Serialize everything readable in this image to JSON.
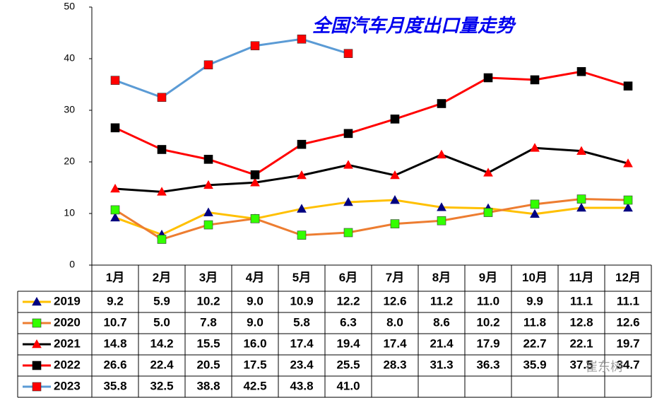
{
  "chart_data": {
    "type": "line",
    "title": "全国汽车月度出口量走势",
    "watermark": "崔东树",
    "categories": [
      "1月",
      "2月",
      "3月",
      "4月",
      "5月",
      "6月",
      "7月",
      "8月",
      "9月",
      "10月",
      "11月",
      "12月"
    ],
    "ylim": [
      0,
      50
    ],
    "yticks": [
      0,
      10,
      20,
      30,
      40,
      50
    ],
    "grid": false,
    "series": [
      {
        "name": "2019",
        "color": "#ffc000",
        "marker": "triangle",
        "marker_color": "#000080",
        "values": [
          9.2,
          5.9,
          10.2,
          9.0,
          10.9,
          12.2,
          12.6,
          11.2,
          11.0,
          9.9,
          11.1,
          11.1
        ],
        "value_labels": [
          "9.2",
          "5.9",
          "10.2",
          "9.0",
          "10.9",
          "12.2",
          "12.6",
          "11.2",
          "11.0",
          "9.9",
          "11.1",
          "11.1"
        ]
      },
      {
        "name": "2020",
        "color": "#ed7d31",
        "marker": "square",
        "marker_color": "#33ff00",
        "values": [
          10.7,
          5.0,
          7.8,
          9.0,
          5.8,
          6.3,
          8.0,
          8.6,
          10.2,
          11.8,
          12.8,
          12.6
        ],
        "value_labels": [
          "10.7",
          "5.0",
          "7.8",
          "9.0",
          "5.8",
          "6.3",
          "8.0",
          "8.6",
          "10.2",
          "11.8",
          "12.8",
          "12.6"
        ]
      },
      {
        "name": "2021",
        "color": "#000000",
        "marker": "triangle",
        "marker_color": "#ff0000",
        "values": [
          14.8,
          14.2,
          15.5,
          16.0,
          17.4,
          19.4,
          17.4,
          21.4,
          17.9,
          22.7,
          22.1,
          19.7
        ],
        "value_labels": [
          "14.8",
          "14.2",
          "15.5",
          "16.0",
          "17.4",
          "19.4",
          "17.4",
          "21.4",
          "17.9",
          "22.7",
          "22.1",
          "19.7"
        ]
      },
      {
        "name": "2022",
        "color": "#ff0000",
        "marker": "square",
        "marker_color": "#000000",
        "values": [
          26.6,
          22.4,
          20.5,
          17.5,
          23.4,
          25.5,
          28.3,
          31.3,
          36.3,
          35.9,
          37.5,
          34.7
        ],
        "value_labels": [
          "26.6",
          "22.4",
          "20.5",
          "17.5",
          "23.4",
          "25.5",
          "28.3",
          "31.3",
          "36.3",
          "35.9",
          "37.5",
          "34.7"
        ]
      },
      {
        "name": "2023",
        "color": "#5b9bd5",
        "marker": "square",
        "marker_color": "#ff0000",
        "values": [
          35.8,
          32.5,
          38.8,
          42.5,
          43.8,
          41.0,
          null,
          null,
          null,
          null,
          null,
          null
        ],
        "value_labels": [
          "35.8",
          "32.5",
          "38.8",
          "42.5",
          "43.8",
          "41.0",
          null,
          null,
          null,
          null,
          null,
          null
        ]
      }
    ]
  }
}
